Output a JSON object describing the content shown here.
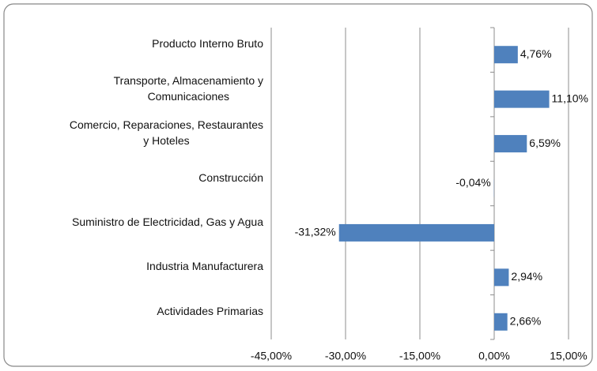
{
  "chart_data": {
    "type": "bar",
    "orientation": "horizontal",
    "categories": [
      "Producto Interno Bruto",
      "Transporte, Almacenamiento y\nComunicaciones",
      "Comercio, Reparaciones, Restaurantes\ny Hoteles",
      "Construcción",
      "Suministro de Electricidad, Gas y Agua",
      "Industria Manufacturera",
      "Actividades Primarias"
    ],
    "values": [
      4.76,
      11.1,
      6.59,
      -0.04,
      -31.32,
      2.94,
      2.66
    ],
    "value_labels": [
      "4,76%",
      "11,10%",
      "6,59%",
      "-0,04%",
      "-31,32%",
      "2,94%",
      "2,66%"
    ],
    "color": "#4f81bd",
    "xlim": [
      -45,
      15
    ],
    "xticks": [
      {
        "value": -45,
        "label": "-45,00%"
      },
      {
        "value": -30,
        "label": "-30,00%"
      },
      {
        "value": -15,
        "label": "-15,00%"
      },
      {
        "value": 0,
        "label": "0,00%"
      },
      {
        "value": 15,
        "label": "15,00%"
      }
    ],
    "grid": true
  }
}
